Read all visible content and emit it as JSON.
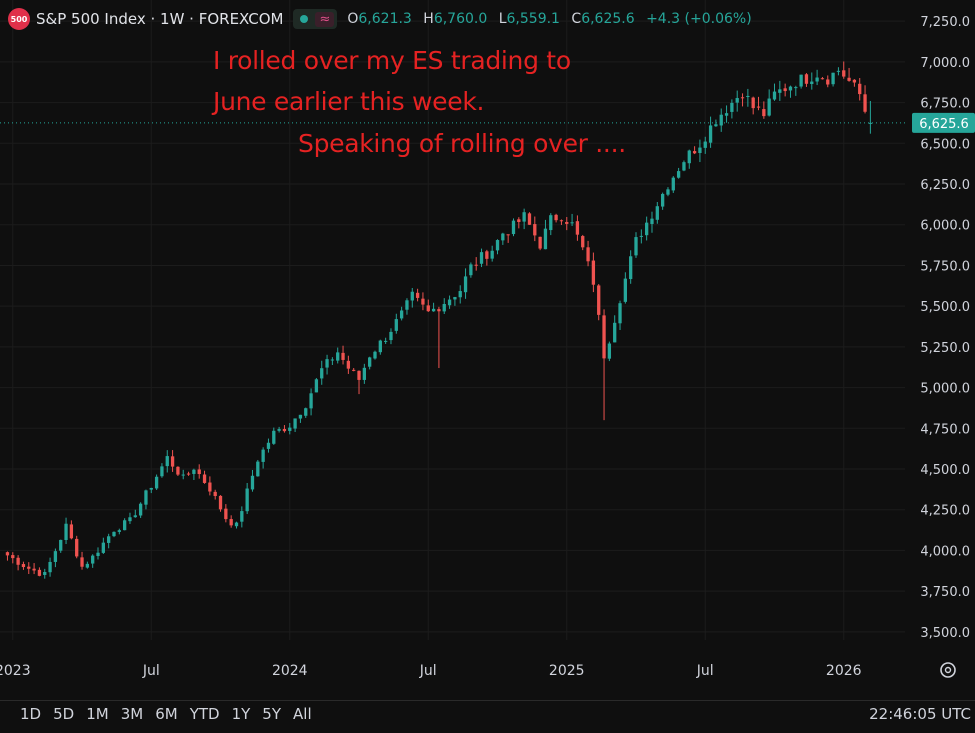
{
  "header": {
    "logo_text": "500",
    "title": "S&P 500 Index · 1W · FOREXCOM",
    "wave_symbol": "≈",
    "ohlc": [
      {
        "k": "O",
        "v": "6,621.3"
      },
      {
        "k": "H",
        "v": "6,760.0"
      },
      {
        "k": "L",
        "v": "6,559.1"
      },
      {
        "k": "C",
        "v": "6,625.6"
      }
    ],
    "change": "+4.3 (+0.06%)"
  },
  "annotation": {
    "line1": "I rolled over my ES trading to",
    "line2": "June earlier this week.",
    "line3": "Speaking of rolling over ...."
  },
  "chart_data": {
    "type": "candlestick",
    "ylim": [
      3450,
      7380
    ],
    "y_ticks": [
      "3,500.0",
      "3,750.0",
      "4,000.0",
      "4,250.0",
      "4,500.0",
      "4,750.0",
      "5,000.0",
      "5,250.0",
      "5,500.0",
      "5,750.0",
      "6,000.0",
      "6,250.0",
      "6,500.0",
      "6,750.0",
      "7,000.0",
      "7,250.0"
    ],
    "y_tick_values": [
      3500,
      3750,
      4000,
      4250,
      4500,
      4750,
      5000,
      5250,
      5500,
      5750,
      6000,
      6250,
      6500,
      6750,
      7000,
      7250
    ],
    "x_ticks": [
      {
        "label": "2023",
        "week": 1
      },
      {
        "label": "Jul",
        "week": 27
      },
      {
        "label": "2024",
        "week": 53
      },
      {
        "label": "Jul",
        "week": 79
      },
      {
        "label": "2025",
        "week": 105
      },
      {
        "label": "Jul",
        "week": 131
      },
      {
        "label": "2026",
        "week": 157
      }
    ],
    "last_price": 6625.6,
    "last_price_label": "6,625.6",
    "up_color": "#26a69a",
    "down_color": "#ef5350",
    "anchors": [
      [
        0,
        3970
      ],
      [
        4,
        3890
      ],
      [
        7,
        3850
      ],
      [
        11,
        4150
      ],
      [
        14,
        3900
      ],
      [
        16,
        3960
      ],
      [
        20,
        4130
      ],
      [
        23,
        4180
      ],
      [
        27,
        4400
      ],
      [
        30,
        4570
      ],
      [
        33,
        4440
      ],
      [
        35,
        4510
      ],
      [
        38,
        4380
      ],
      [
        41,
        4200
      ],
      [
        43,
        4150
      ],
      [
        45,
        4360
      ],
      [
        47,
        4560
      ],
      [
        50,
        4720
      ],
      [
        53,
        4770
      ],
      [
        56,
        4900
      ],
      [
        59,
        5110
      ],
      [
        62,
        5220
      ],
      [
        64,
        5120
      ],
      [
        66,
        5050
      ],
      [
        68,
        5200
      ],
      [
        71,
        5310
      ],
      [
        74,
        5450
      ],
      [
        76,
        5560
      ],
      [
        79,
        5460
      ],
      [
        81,
        5500
      ],
      [
        85,
        5600
      ],
      [
        87,
        5740
      ],
      [
        89,
        5800
      ],
      [
        91,
        5850
      ],
      [
        93,
        5950
      ],
      [
        95,
        5990
      ],
      [
        97,
        6050
      ],
      [
        100,
        5880
      ],
      [
        102,
        6030
      ],
      [
        104,
        6060
      ],
      [
        106,
        6000
      ],
      [
        108,
        5850
      ],
      [
        110,
        5650
      ],
      [
        112,
        5200
      ],
      [
        113,
        5300
      ],
      [
        115,
        5550
      ],
      [
        118,
        5900
      ],
      [
        121,
        6070
      ],
      [
        124,
        6250
      ],
      [
        127,
        6400
      ],
      [
        130,
        6500
      ],
      [
        133,
        6650
      ],
      [
        136,
        6750
      ],
      [
        138,
        6820
      ],
      [
        140,
        6720
      ],
      [
        142,
        6680
      ],
      [
        144,
        6800
      ],
      [
        146,
        6840
      ],
      [
        148,
        6880
      ],
      [
        150,
        6900
      ],
      [
        152,
        6930
      ],
      [
        154,
        6900
      ],
      [
        156,
        6950
      ],
      [
        157,
        6920
      ],
      [
        158,
        6880
      ],
      [
        160,
        6800
      ],
      [
        161,
        6700
      ],
      [
        162,
        6625.6
      ]
    ]
  },
  "time_ranges": [
    "1D",
    "5D",
    "1M",
    "3M",
    "6M",
    "YTD",
    "1Y",
    "5Y",
    "All"
  ],
  "clock": "22:46:05 UTC"
}
